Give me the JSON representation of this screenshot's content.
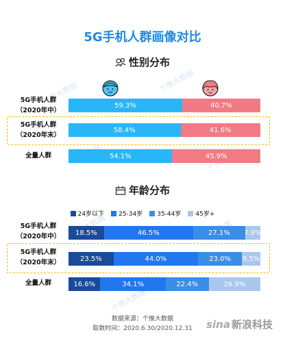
{
  "title": "5G手机人群画像对比",
  "gender_section": {
    "title": "性别分布",
    "icon": "gender-icon"
  },
  "age_section": {
    "title": "年龄分布",
    "icon": "calendar-icon"
  },
  "rows": [
    {
      "line1": "5G手机人群",
      "line2": "（2020年中）"
    },
    {
      "line1": "5G手机人群",
      "line2": "（2020年末）"
    },
    {
      "line1": "全量人群",
      "line2": ""
    }
  ],
  "watermark": "个推大数据",
  "footer": {
    "source": "数据来源：个推大数据",
    "period": "取数时间：2020.6.30/2020.12.31"
  },
  "brand": {
    "sina": "sina",
    "name": "新浪科技"
  },
  "colors": {
    "male": "#29b6f6",
    "female": "#f07b84",
    "age": [
      "#1a4a9a",
      "#2277ee",
      "#3a8ee6",
      "#a9c7ee"
    ],
    "highlight": "#f5b800"
  },
  "chart_data": [
    {
      "type": "bar",
      "stacked": true,
      "orientation": "horizontal",
      "title": "性别分布",
      "categories": [
        "5G手机人群（2020年中）",
        "5G手机人群（2020年末）",
        "全量人群"
      ],
      "series": [
        {
          "name": "male",
          "values": [
            59.3,
            58.4,
            54.1
          ],
          "labels": [
            "59.3%",
            "58.4%",
            "54.1%"
          ]
        },
        {
          "name": "female",
          "values": [
            40.7,
            41.6,
            45.9
          ],
          "labels": [
            "40.7%",
            "41.6%",
            "45.9%"
          ]
        }
      ]
    },
    {
      "type": "bar",
      "stacked": true,
      "orientation": "horizontal",
      "title": "年龄分布",
      "categories": [
        "5G手机人群（2020年中）",
        "5G手机人群（2020年末）",
        "全量人群"
      ],
      "legend": "top",
      "series": [
        {
          "name": "24岁以下",
          "values": [
            18.5,
            23.5,
            16.6
          ],
          "labels": [
            "18.5%",
            "23.5%",
            "16.6%"
          ]
        },
        {
          "name": "25-34岁",
          "values": [
            46.5,
            44.0,
            34.1
          ],
          "labels": [
            "46.5%",
            "44.0%",
            "34.1%"
          ]
        },
        {
          "name": "35-44岁",
          "values": [
            27.1,
            23.0,
            22.4
          ],
          "labels": [
            "27.1%",
            "23.0%",
            "22.4%"
          ]
        },
        {
          "name": "45岁+",
          "values": [
            7.9,
            9.5,
            26.9
          ],
          "labels": [
            "7.9%",
            "9.5%",
            "26.9%"
          ]
        }
      ]
    }
  ]
}
